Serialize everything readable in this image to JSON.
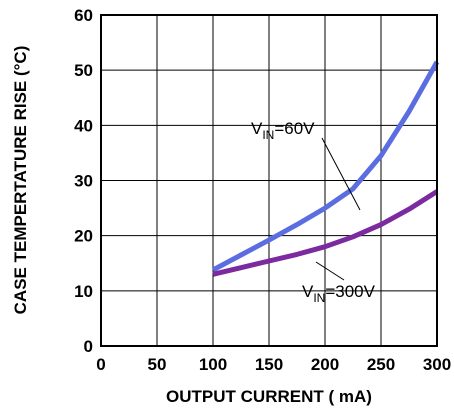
{
  "chart_data": {
    "type": "line",
    "xlabel": "OUTPUT CURRENT ( mA)",
    "ylabel": "CASE TEMPERTATURE RISE (°C)",
    "xlim": [
      0,
      300
    ],
    "ylim": [
      0,
      60
    ],
    "xticks": [
      0,
      50,
      100,
      150,
      200,
      250,
      300
    ],
    "yticks": [
      0,
      10,
      20,
      30,
      40,
      50,
      60
    ],
    "grid": true,
    "series": [
      {
        "name_prefix": "V",
        "name_sub": "IN",
        "name_suffix": "=60V",
        "color": "#5b6de0",
        "x": [
          100,
          125,
          150,
          175,
          200,
          225,
          250,
          275,
          300
        ],
        "y": [
          13.8,
          16.5,
          19.2,
          22,
          25,
          28.5,
          34.5,
          42.5,
          51.5
        ]
      },
      {
        "name_prefix": "V",
        "name_sub": "IN",
        "name_suffix": "=300V",
        "color": "#7b2aa0",
        "x": [
          100,
          125,
          150,
          175,
          200,
          225,
          250,
          275,
          300
        ],
        "y": [
          13,
          14.2,
          15.4,
          16.6,
          18,
          19.8,
          22,
          24.8,
          28
        ]
      }
    ]
  }
}
